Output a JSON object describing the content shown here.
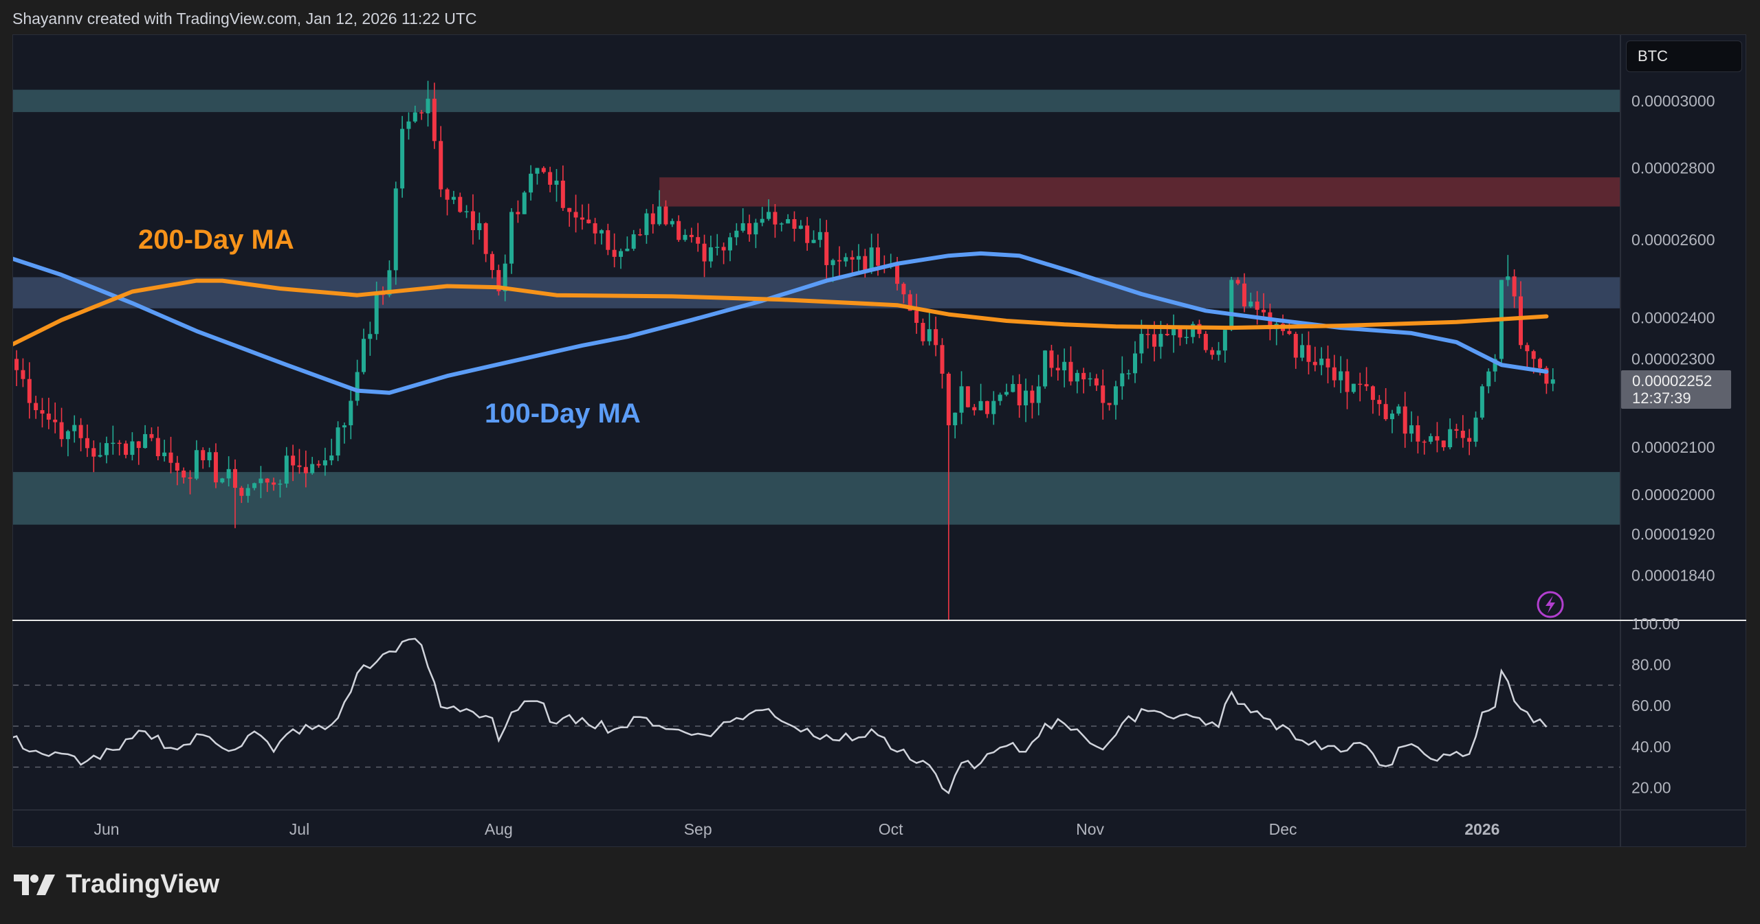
{
  "header": {
    "credit": "Shayannv created with TradingView.com, Jan 12, 2026 11:22 UTC"
  },
  "symbol_badge": "BTC",
  "last_price": {
    "value": "0.00002252",
    "countdown": "12:37:39"
  },
  "footer": {
    "brand": "TradingView"
  },
  "colors": {
    "up": "#22ab94",
    "down": "#f23645",
    "ma100": "#5b9cf6",
    "ma200": "#f7931a",
    "rsi": "#d1d4dc",
    "zone_support": "#2f4c56",
    "zone_mid": "#34435e",
    "zone_resistance": "#5c2731",
    "alert_icon": "#b23fcf"
  },
  "icons": {
    "alert": "lightning-icon",
    "brand": "tradingview-logo-icon"
  },
  "chart_data": [
    {
      "type": "candlestick",
      "interval": "1D",
      "yscale": "log",
      "ylim": [
        1.75e-05,
        3.05e-05
      ],
      "ytick_labels": [
        "0.00003000",
        "0.00002800",
        "0.00002600",
        "0.00002400",
        "0.00002300",
        "0.00002100",
        "0.00002000",
        "0.00001920",
        "0.00001840"
      ],
      "xtick_labels": [
        "Jun",
        "Jul",
        "Aug",
        "Sep",
        "Oct",
        "Nov",
        "Dec",
        "2026"
      ],
      "close_points": [
        [
          "2025-05-17",
          2.3e-05
        ],
        [
          "2025-05-22",
          2.174e-05
        ],
        [
          "2025-05-26",
          2.135e-05
        ],
        [
          "2025-05-31",
          2.083e-05
        ],
        [
          "2025-06-03",
          2.108e-05
        ],
        [
          "2025-06-08",
          2.12e-05
        ],
        [
          "2025-06-12",
          2.05e-05
        ],
        [
          "2025-06-16",
          2.072e-05
        ],
        [
          "2025-06-21",
          2.014e-05
        ],
        [
          "2025-06-26",
          2.025e-05
        ],
        [
          "2025-06-30",
          2.061e-05
        ],
        [
          "2025-07-04",
          2.061e-05
        ],
        [
          "2025-07-08",
          2.148e-05
        ],
        [
          "2025-07-11",
          2.348e-05
        ],
        [
          "2025-07-15",
          2.52e-05
        ],
        [
          "2025-07-17",
          2.915e-05
        ],
        [
          "2025-07-19",
          2.965e-05
        ],
        [
          "2025-07-21",
          3.007e-05
        ],
        [
          "2025-07-23",
          2.739e-05
        ],
        [
          "2025-07-26",
          2.676e-05
        ],
        [
          "2025-07-29",
          2.645e-05
        ],
        [
          "2025-08-01",
          2.466e-05
        ],
        [
          "2025-08-03",
          2.676e-05
        ],
        [
          "2025-08-07",
          2.8e-05
        ],
        [
          "2025-08-09",
          2.752e-05
        ],
        [
          "2025-08-12",
          2.676e-05
        ],
        [
          "2025-08-15",
          2.645e-05
        ],
        [
          "2025-08-19",
          2.555e-05
        ],
        [
          "2025-08-22",
          2.615e-05
        ],
        [
          "2025-08-26",
          2.691e-05
        ],
        [
          "2025-08-29",
          2.6e-05
        ],
        [
          "2025-09-02",
          2.543e-05
        ],
        [
          "2025-09-05",
          2.572e-05
        ],
        [
          "2025-09-08",
          2.645e-05
        ],
        [
          "2025-09-12",
          2.676e-05
        ],
        [
          "2025-09-16",
          2.63e-05
        ],
        [
          "2025-09-19",
          2.6e-05
        ],
        [
          "2025-09-23",
          2.543e-05
        ],
        [
          "2025-09-26",
          2.557e-05
        ],
        [
          "2025-09-30",
          2.528e-05
        ],
        [
          "2025-10-02",
          2.485e-05
        ],
        [
          "2025-10-05",
          2.387e-05
        ],
        [
          "2025-10-08",
          2.333e-05
        ],
        [
          "2025-10-10",
          2.148e-05
        ],
        [
          "2025-10-12",
          2.236e-05
        ],
        [
          "2025-10-16",
          2.173e-05
        ],
        [
          "2025-10-19",
          2.223e-05
        ],
        [
          "2025-10-23",
          2.198e-05
        ],
        [
          "2025-10-25",
          2.32e-05
        ],
        [
          "2025-10-28",
          2.293e-05
        ],
        [
          "2025-10-30",
          2.267e-05
        ],
        [
          "2025-11-03",
          2.198e-05
        ],
        [
          "2025-11-05",
          2.236e-05
        ],
        [
          "2025-11-09",
          2.36e-05
        ],
        [
          "2025-11-12",
          2.36e-05
        ],
        [
          "2025-11-14",
          2.374e-05
        ],
        [
          "2025-11-18",
          2.36e-05
        ],
        [
          "2025-11-21",
          2.32e-05
        ],
        [
          "2025-11-23",
          2.495e-05
        ],
        [
          "2025-11-26",
          2.44e-05
        ],
        [
          "2025-11-28",
          2.413e-05
        ],
        [
          "2025-12-02",
          2.36e-05
        ],
        [
          "2025-12-05",
          2.293e-05
        ],
        [
          "2025-12-08",
          2.28e-05
        ],
        [
          "2025-12-11",
          2.223e-05
        ],
        [
          "2025-12-14",
          2.236e-05
        ],
        [
          "2025-12-18",
          2.174e-05
        ],
        [
          "2025-12-21",
          2.148e-05
        ],
        [
          "2025-12-24",
          2.124e-05
        ],
        [
          "2025-12-28",
          2.136e-05
        ],
        [
          "2025-12-30",
          2.112e-05
        ],
        [
          "2026-01-01",
          2.236e-05
        ],
        [
          "2026-01-03",
          2.3e-05
        ],
        [
          "2026-01-04",
          2.495e-05
        ],
        [
          "2026-01-06",
          2.453e-05
        ],
        [
          "2026-01-07",
          2.333e-05
        ],
        [
          "2026-01-09",
          2.3e-05
        ],
        [
          "2026-01-12",
          2.252e-05
        ]
      ],
      "notable_wicks": [
        {
          "date": "2025-06-21",
          "low": 1.932e-05
        },
        {
          "date": "2025-07-21",
          "high": 3.063e-05
        },
        {
          "date": "2025-10-10",
          "low": 1.75e-05
        },
        {
          "date": "2026-01-05",
          "high": 2.56e-05
        }
      ],
      "zones": [
        {
          "kind": "support",
          "from": "2025-05-17",
          "low": 2.966e-05,
          "high": 3.035e-05
        },
        {
          "kind": "resistance",
          "from": "2025-08-26",
          "low": 2.691e-05,
          "high": 2.773e-05
        },
        {
          "kind": "mid",
          "from": "2025-05-17",
          "low": 2.423e-05,
          "high": 2.502e-05
        },
        {
          "kind": "support",
          "from": "2025-05-17",
          "low": 1.939e-05,
          "high": 2.047e-05
        }
      ],
      "series": [
        {
          "name": "100-Day MA",
          "points": [
            [
              "2025-05-17",
              2.552e-05
            ],
            [
              "2025-05-25",
              2.508e-05
            ],
            [
              "2025-06-05",
              2.436e-05
            ],
            [
              "2025-06-15",
              2.367e-05
            ],
            [
              "2025-06-29",
              2.286e-05
            ],
            [
              "2025-07-10",
              2.226e-05
            ],
            [
              "2025-07-15",
              2.221e-05
            ],
            [
              "2025-07-24",
              2.26e-05
            ],
            [
              "2025-08-03",
              2.294e-05
            ],
            [
              "2025-08-14",
              2.332e-05
            ],
            [
              "2025-08-21",
              2.353e-05
            ],
            [
              "2025-08-31",
              2.394e-05
            ],
            [
              "2025-09-11",
              2.442e-05
            ],
            [
              "2025-09-21",
              2.493e-05
            ],
            [
              "2025-10-02",
              2.537e-05
            ],
            [
              "2025-10-10",
              2.558e-05
            ],
            [
              "2025-10-15",
              2.564e-05
            ],
            [
              "2025-10-21",
              2.558e-05
            ],
            [
              "2025-10-29",
              2.517e-05
            ],
            [
              "2025-11-09",
              2.459e-05
            ],
            [
              "2025-11-19",
              2.417e-05
            ],
            [
              "2025-11-30",
              2.394e-05
            ],
            [
              "2025-12-10",
              2.375e-05
            ],
            [
              "2025-12-21",
              2.362e-05
            ],
            [
              "2025-12-28",
              2.34e-05
            ],
            [
              "2026-01-04",
              2.286e-05
            ],
            [
              "2026-01-11",
              2.27e-05
            ]
          ]
        },
        {
          "name": "200-Day MA",
          "points": [
            [
              "2025-05-17",
              2.332e-05
            ],
            [
              "2025-05-25",
              2.394e-05
            ],
            [
              "2025-06-05",
              2.465e-05
            ],
            [
              "2025-06-15",
              2.493e-05
            ],
            [
              "2025-06-19",
              2.493e-05
            ],
            [
              "2025-06-28",
              2.473e-05
            ],
            [
              "2025-07-10",
              2.456e-05
            ],
            [
              "2025-07-24",
              2.479e-05
            ],
            [
              "2025-08-01",
              2.476e-05
            ],
            [
              "2025-08-10",
              2.456e-05
            ],
            [
              "2025-08-28",
              2.453e-05
            ],
            [
              "2025-09-14",
              2.445e-05
            ],
            [
              "2025-10-02",
              2.431e-05
            ],
            [
              "2025-10-10",
              2.408e-05
            ],
            [
              "2025-10-19",
              2.392e-05
            ],
            [
              "2025-10-28",
              2.383e-05
            ],
            [
              "2025-11-05",
              2.378e-05
            ],
            [
              "2025-11-23",
              2.375e-05
            ],
            [
              "2025-12-10",
              2.38e-05
            ],
            [
              "2025-12-28",
              2.389e-05
            ],
            [
              "2026-01-11",
              2.403e-05
            ]
          ]
        }
      ],
      "annotations": [
        "200-Day MA",
        "100-Day MA"
      ]
    },
    {
      "type": "line",
      "ylim": [
        10,
        100
      ],
      "ytick_labels": [
        "100.00",
        "80.00",
        "60.00",
        "40.00",
        "20.00"
      ],
      "reference_lines": [
        70,
        50,
        30
      ],
      "points": [
        [
          "2025-05-17",
          44.1
        ],
        [
          "2025-05-22",
          36.4
        ],
        [
          "2025-05-29",
          33.1
        ],
        [
          "2025-06-03",
          38.6
        ],
        [
          "2025-06-07",
          47.4
        ],
        [
          "2025-06-12",
          38.6
        ],
        [
          "2025-06-16",
          45.7
        ],
        [
          "2025-06-21",
          38.6
        ],
        [
          "2025-06-24",
          47.4
        ],
        [
          "2025-06-27",
          37.5
        ],
        [
          "2025-06-30",
          48.5
        ],
        [
          "2025-07-05",
          48.5
        ],
        [
          "2025-07-07",
          54.0
        ],
        [
          "2025-07-10",
          75.9
        ],
        [
          "2025-07-13",
          81.4
        ],
        [
          "2025-07-17",
          91.2
        ],
        [
          "2025-07-20",
          89.6
        ],
        [
          "2025-07-23",
          59.4
        ],
        [
          "2025-07-27",
          58.4
        ],
        [
          "2025-07-31",
          54.0
        ],
        [
          "2025-08-01",
          43.0
        ],
        [
          "2025-08-03",
          56.7
        ],
        [
          "2025-08-07",
          62.2
        ],
        [
          "2025-08-10",
          51.2
        ],
        [
          "2025-08-14",
          54.0
        ],
        [
          "2025-08-19",
          48.5
        ],
        [
          "2025-08-24",
          54.0
        ],
        [
          "2025-08-28",
          48.5
        ],
        [
          "2025-08-31",
          45.7
        ],
        [
          "2025-09-04",
          48.5
        ],
        [
          "2025-09-07",
          54.0
        ],
        [
          "2025-09-12",
          58.4
        ],
        [
          "2025-09-16",
          49.6
        ],
        [
          "2025-09-21",
          45.7
        ],
        [
          "2025-09-25",
          43.0
        ],
        [
          "2025-09-28",
          48.5
        ],
        [
          "2025-10-02",
          37.5
        ],
        [
          "2025-10-05",
          32.0
        ],
        [
          "2025-10-08",
          26.6
        ],
        [
          "2025-10-10",
          17.3
        ],
        [
          "2025-10-12",
          32.0
        ],
        [
          "2025-10-15",
          32.0
        ],
        [
          "2025-10-19",
          40.3
        ],
        [
          "2025-10-22",
          37.5
        ],
        [
          "2025-10-25",
          51.2
        ],
        [
          "2025-10-28",
          51.2
        ],
        [
          "2025-10-30",
          48.5
        ],
        [
          "2025-11-03",
          38.6
        ],
        [
          "2025-11-05",
          45.7
        ],
        [
          "2025-11-09",
          58.4
        ],
        [
          "2025-11-12",
          56.7
        ],
        [
          "2025-11-18",
          54.0
        ],
        [
          "2025-11-21",
          49.6
        ],
        [
          "2025-11-23",
          66.6
        ],
        [
          "2025-11-26",
          56.7
        ],
        [
          "2025-11-28",
          54.0
        ],
        [
          "2025-12-02",
          48.5
        ],
        [
          "2025-12-04",
          43.0
        ],
        [
          "2025-12-08",
          40.3
        ],
        [
          "2025-12-10",
          37.5
        ],
        [
          "2025-12-14",
          40.3
        ],
        [
          "2025-12-17",
          30.4
        ],
        [
          "2025-12-20",
          40.3
        ],
        [
          "2025-12-23",
          36.4
        ],
        [
          "2025-12-25",
          33.1
        ],
        [
          "2025-12-28",
          37.5
        ],
        [
          "2025-12-30",
          36.4
        ],
        [
          "2026-01-01",
          56.7
        ],
        [
          "2026-01-03",
          59.4
        ],
        [
          "2026-01-04",
          77.0
        ],
        [
          "2026-01-06",
          62.2
        ],
        [
          "2026-01-07",
          58.4
        ],
        [
          "2026-01-11",
          49.6
        ]
      ]
    }
  ]
}
